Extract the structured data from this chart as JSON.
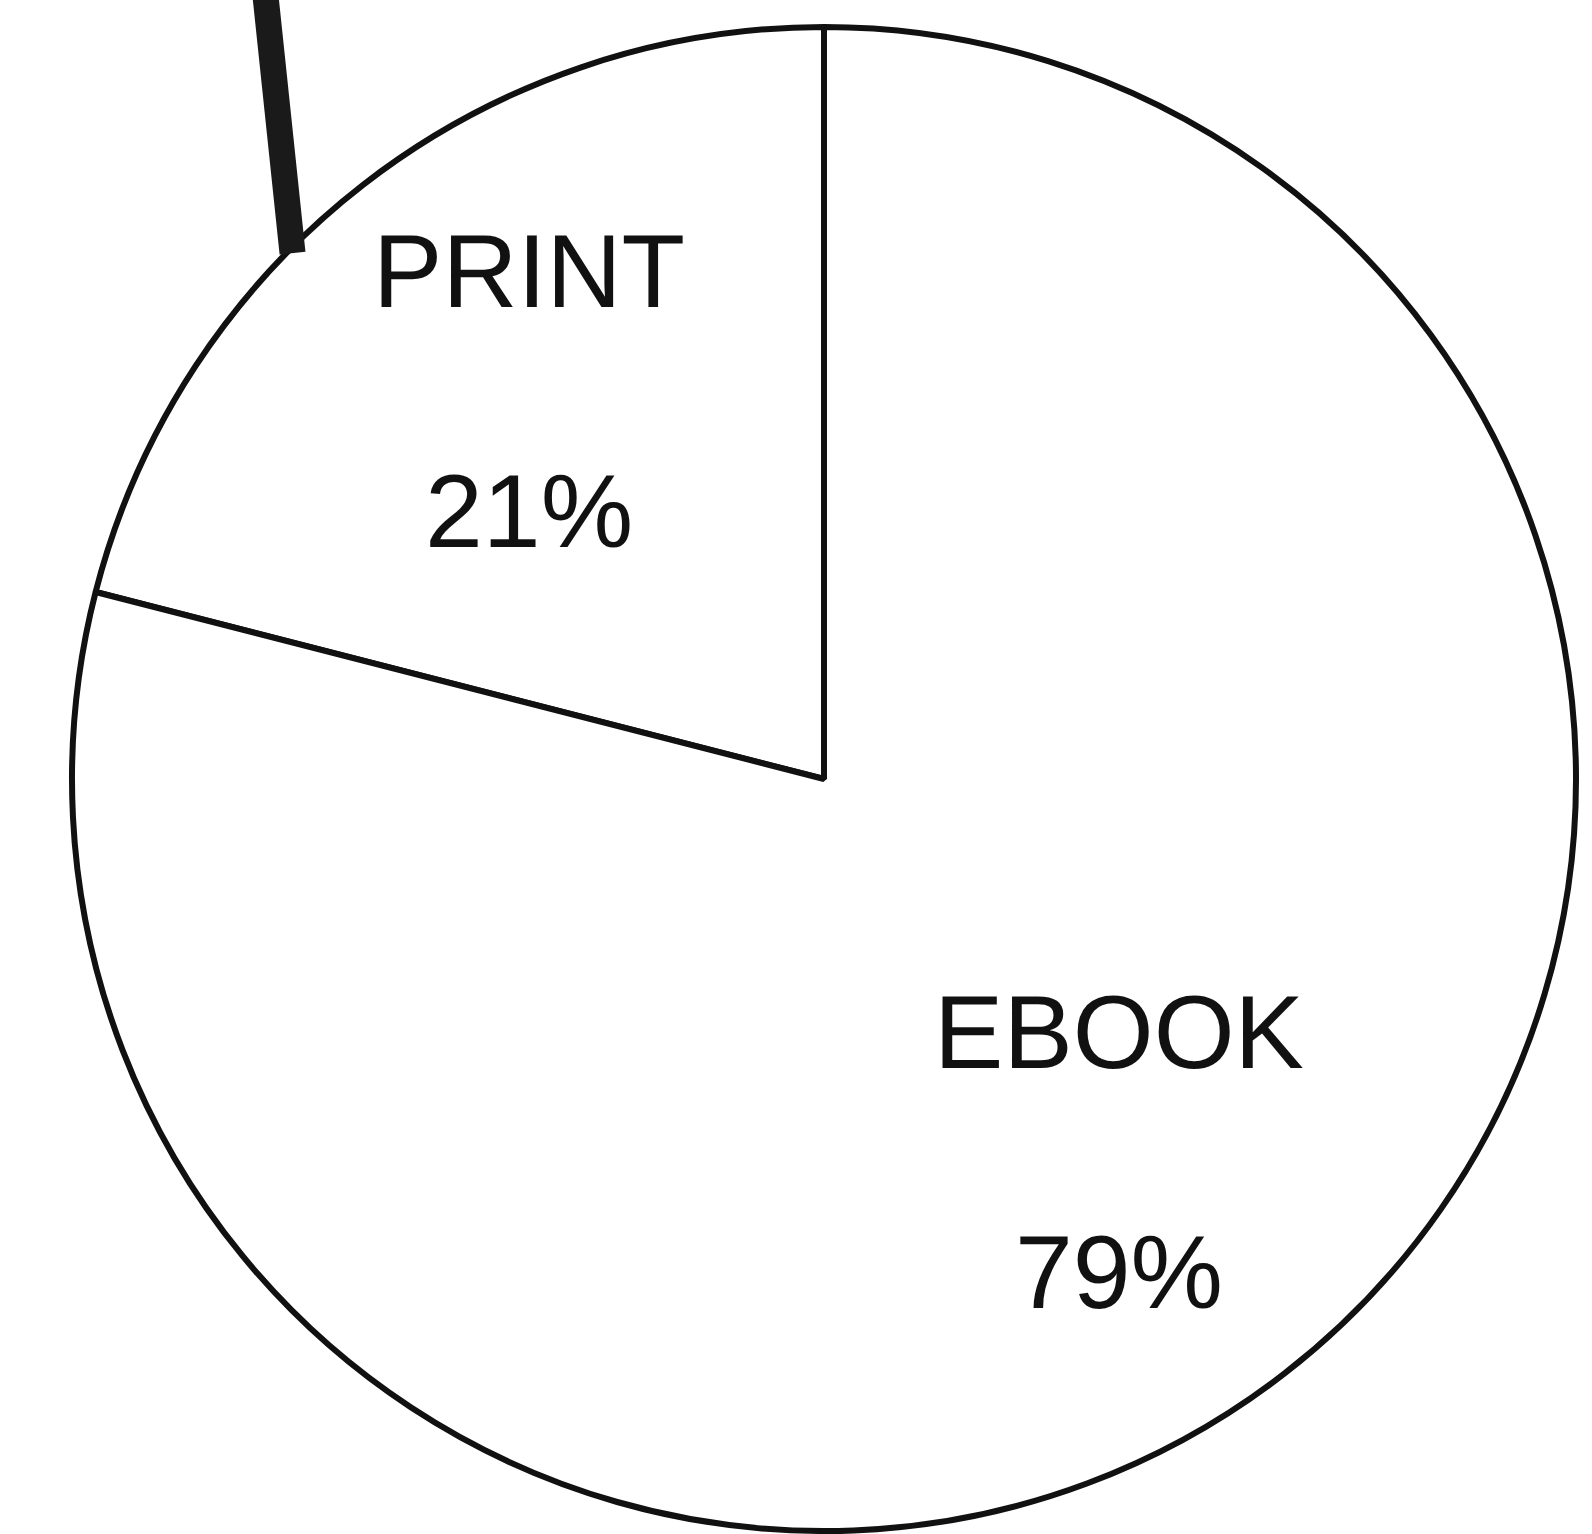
{
  "chart_data": {
    "type": "pie",
    "categories": [
      "PRINT",
      "EBOOK"
    ],
    "values": [
      21,
      79
    ],
    "colors": [
      "#ffffff",
      "#ffffff"
    ],
    "value_labels": [
      "21%",
      "79%"
    ],
    "legend": false
  }
}
